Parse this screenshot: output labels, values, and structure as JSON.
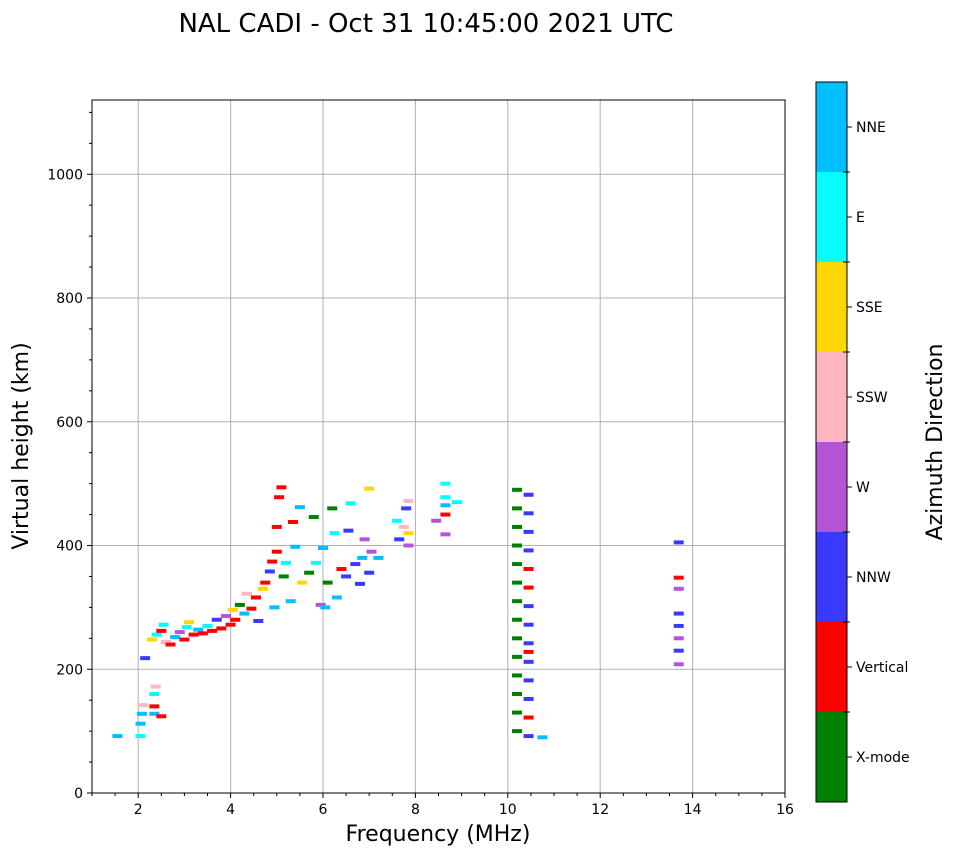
{
  "chart_data": {
    "type": "scatter",
    "title": "NAL CADI - Oct 31 10:45:00 2021 UTC",
    "xlabel": "Frequency (MHz)",
    "ylabel": "Virtual height (km)",
    "xlim": [
      1,
      16
    ],
    "ylim": [
      0,
      1120
    ],
    "xticks": [
      2,
      4,
      6,
      8,
      10,
      12,
      14,
      16
    ],
    "yticks": [
      0,
      200,
      400,
      600,
      800,
      1000
    ],
    "grid": true,
    "colorbar": {
      "label": "Azimuth Direction",
      "categories": [
        {
          "name": "X-mode",
          "color": "#008000"
        },
        {
          "name": "Vertical",
          "color": "#ff0000"
        },
        {
          "name": "NNW",
          "color": "#3a3aff"
        },
        {
          "name": "W",
          "color": "#b554d6"
        },
        {
          "name": "SSW",
          "color": "#ffb6c1"
        },
        {
          "name": "SSE",
          "color": "#ffd700"
        },
        {
          "name": "E",
          "color": "#00ffff"
        },
        {
          "name": "NNE",
          "color": "#00bfff"
        }
      ]
    },
    "points": [
      {
        "f": 1.55,
        "h": 92,
        "dir": "NNE"
      },
      {
        "f": 2.05,
        "h": 92,
        "dir": "E"
      },
      {
        "f": 2.05,
        "h": 112,
        "dir": "NNE"
      },
      {
        "f": 2.08,
        "h": 128,
        "dir": "NNE"
      },
      {
        "f": 2.1,
        "h": 142,
        "dir": "SSW"
      },
      {
        "f": 2.15,
        "h": 218,
        "dir": "NNW"
      },
      {
        "f": 2.35,
        "h": 128,
        "dir": "NNE"
      },
      {
        "f": 2.35,
        "h": 140,
        "dir": "Vertical"
      },
      {
        "f": 2.35,
        "h": 160,
        "dir": "E"
      },
      {
        "f": 2.38,
        "h": 172,
        "dir": "SSW"
      },
      {
        "f": 2.5,
        "h": 124,
        "dir": "Vertical"
      },
      {
        "f": 2.3,
        "h": 248,
        "dir": "SSE"
      },
      {
        "f": 2.4,
        "h": 256,
        "dir": "E"
      },
      {
        "f": 2.5,
        "h": 262,
        "dir": "Vertical"
      },
      {
        "f": 2.55,
        "h": 272,
        "dir": "E"
      },
      {
        "f": 2.6,
        "h": 244,
        "dir": "SSW"
      },
      {
        "f": 2.7,
        "h": 240,
        "dir": "Vertical"
      },
      {
        "f": 2.8,
        "h": 252,
        "dir": "NNE"
      },
      {
        "f": 2.9,
        "h": 260,
        "dir": "W"
      },
      {
        "f": 3.0,
        "h": 248,
        "dir": "Vertical"
      },
      {
        "f": 3.05,
        "h": 268,
        "dir": "E"
      },
      {
        "f": 3.1,
        "h": 276,
        "dir": "SSE"
      },
      {
        "f": 3.2,
        "h": 256,
        "dir": "Vertical"
      },
      {
        "f": 3.3,
        "h": 264,
        "dir": "NNE"
      },
      {
        "f": 3.4,
        "h": 258,
        "dir": "Vertical"
      },
      {
        "f": 3.5,
        "h": 270,
        "dir": "E"
      },
      {
        "f": 3.6,
        "h": 262,
        "dir": "Vertical"
      },
      {
        "f": 3.7,
        "h": 280,
        "dir": "NNW"
      },
      {
        "f": 3.8,
        "h": 266,
        "dir": "Vertical"
      },
      {
        "f": 3.9,
        "h": 286,
        "dir": "W"
      },
      {
        "f": 4.0,
        "h": 272,
        "dir": "Vertical"
      },
      {
        "f": 4.05,
        "h": 296,
        "dir": "SSE"
      },
      {
        "f": 4.1,
        "h": 280,
        "dir": "Vertical"
      },
      {
        "f": 4.2,
        "h": 304,
        "dir": "X-mode"
      },
      {
        "f": 4.3,
        "h": 290,
        "dir": "NNE"
      },
      {
        "f": 4.35,
        "h": 322,
        "dir": "SSW"
      },
      {
        "f": 4.45,
        "h": 298,
        "dir": "Vertical"
      },
      {
        "f": 4.55,
        "h": 316,
        "dir": "Vertical"
      },
      {
        "f": 4.6,
        "h": 278,
        "dir": "NNW"
      },
      {
        "f": 4.7,
        "h": 330,
        "dir": "SSE"
      },
      {
        "f": 4.75,
        "h": 340,
        "dir": "Vertical"
      },
      {
        "f": 4.85,
        "h": 358,
        "dir": "NNW"
      },
      {
        "f": 4.9,
        "h": 374,
        "dir": "Vertical"
      },
      {
        "f": 4.95,
        "h": 300,
        "dir": "NNE"
      },
      {
        "f": 5.0,
        "h": 390,
        "dir": "Vertical"
      },
      {
        "f": 5.0,
        "h": 430,
        "dir": "Vertical"
      },
      {
        "f": 5.05,
        "h": 478,
        "dir": "Vertical"
      },
      {
        "f": 5.1,
        "h": 494,
        "dir": "Vertical"
      },
      {
        "f": 5.15,
        "h": 350,
        "dir": "X-mode"
      },
      {
        "f": 5.2,
        "h": 372,
        "dir": "E"
      },
      {
        "f": 5.3,
        "h": 310,
        "dir": "NNE"
      },
      {
        "f": 5.35,
        "h": 438,
        "dir": "Vertical"
      },
      {
        "f": 5.4,
        "h": 398,
        "dir": "NNE"
      },
      {
        "f": 5.5,
        "h": 462,
        "dir": "NNE"
      },
      {
        "f": 5.55,
        "h": 340,
        "dir": "SSE"
      },
      {
        "f": 5.7,
        "h": 356,
        "dir": "X-mode"
      },
      {
        "f": 5.8,
        "h": 446,
        "dir": "X-mode"
      },
      {
        "f": 5.85,
        "h": 372,
        "dir": "E"
      },
      {
        "f": 5.95,
        "h": 304,
        "dir": "W"
      },
      {
        "f": 6.0,
        "h": 396,
        "dir": "NNE"
      },
      {
        "f": 6.05,
        "h": 300,
        "dir": "NNE"
      },
      {
        "f": 6.1,
        "h": 340,
        "dir": "X-mode"
      },
      {
        "f": 6.2,
        "h": 460,
        "dir": "X-mode"
      },
      {
        "f": 6.25,
        "h": 420,
        "dir": "E"
      },
      {
        "f": 6.3,
        "h": 316,
        "dir": "NNE"
      },
      {
        "f": 6.4,
        "h": 362,
        "dir": "Vertical"
      },
      {
        "f": 6.5,
        "h": 350,
        "dir": "NNW"
      },
      {
        "f": 6.55,
        "h": 424,
        "dir": "NNW"
      },
      {
        "f": 6.6,
        "h": 468,
        "dir": "E"
      },
      {
        "f": 6.7,
        "h": 370,
        "dir": "NNW"
      },
      {
        "f": 6.8,
        "h": 338,
        "dir": "NNW"
      },
      {
        "f": 6.85,
        "h": 380,
        "dir": "NNE"
      },
      {
        "f": 6.9,
        "h": 410,
        "dir": "W"
      },
      {
        "f": 7.0,
        "h": 356,
        "dir": "NNW"
      },
      {
        "f": 7.05,
        "h": 390,
        "dir": "W"
      },
      {
        "f": 7.0,
        "h": 492,
        "dir": "SSE"
      },
      {
        "f": 7.2,
        "h": 380,
        "dir": "NNE"
      },
      {
        "f": 7.6,
        "h": 440,
        "dir": "E"
      },
      {
        "f": 7.65,
        "h": 410,
        "dir": "NNW"
      },
      {
        "f": 7.75,
        "h": 430,
        "dir": "SSW"
      },
      {
        "f": 7.8,
        "h": 460,
        "dir": "NNW"
      },
      {
        "f": 7.85,
        "h": 400,
        "dir": "W"
      },
      {
        "f": 7.85,
        "h": 420,
        "dir": "SSE"
      },
      {
        "f": 7.85,
        "h": 472,
        "dir": "SSW"
      },
      {
        "f": 8.45,
        "h": 440,
        "dir": "W"
      },
      {
        "f": 8.65,
        "h": 418,
        "dir": "W"
      },
      {
        "f": 8.65,
        "h": 450,
        "dir": "Vertical"
      },
      {
        "f": 8.65,
        "h": 478,
        "dir": "E"
      },
      {
        "f": 8.65,
        "h": 500,
        "dir": "E"
      },
      {
        "f": 8.65,
        "h": 465,
        "dir": "NNE"
      },
      {
        "f": 8.9,
        "h": 470,
        "dir": "E"
      },
      {
        "f": 10.2,
        "h": 100,
        "dir": "X-mode"
      },
      {
        "f": 10.2,
        "h": 130,
        "dir": "X-mode"
      },
      {
        "f": 10.2,
        "h": 160,
        "dir": "X-mode"
      },
      {
        "f": 10.2,
        "h": 190,
        "dir": "X-mode"
      },
      {
        "f": 10.2,
        "h": 220,
        "dir": "X-mode"
      },
      {
        "f": 10.2,
        "h": 250,
        "dir": "X-mode"
      },
      {
        "f": 10.2,
        "h": 280,
        "dir": "X-mode"
      },
      {
        "f": 10.2,
        "h": 310,
        "dir": "X-mode"
      },
      {
        "f": 10.2,
        "h": 340,
        "dir": "X-mode"
      },
      {
        "f": 10.2,
        "h": 370,
        "dir": "X-mode"
      },
      {
        "f": 10.2,
        "h": 400,
        "dir": "X-mode"
      },
      {
        "f": 10.2,
        "h": 430,
        "dir": "X-mode"
      },
      {
        "f": 10.2,
        "h": 460,
        "dir": "X-mode"
      },
      {
        "f": 10.2,
        "h": 490,
        "dir": "X-mode"
      },
      {
        "f": 10.45,
        "h": 92,
        "dir": "NNW"
      },
      {
        "f": 10.45,
        "h": 122,
        "dir": "Vertical"
      },
      {
        "f": 10.45,
        "h": 152,
        "dir": "NNW"
      },
      {
        "f": 10.45,
        "h": 182,
        "dir": "NNW"
      },
      {
        "f": 10.45,
        "h": 212,
        "dir": "NNW"
      },
      {
        "f": 10.45,
        "h": 228,
        "dir": "Vertical"
      },
      {
        "f": 10.45,
        "h": 242,
        "dir": "NNW"
      },
      {
        "f": 10.45,
        "h": 272,
        "dir": "NNW"
      },
      {
        "f": 10.45,
        "h": 302,
        "dir": "NNW"
      },
      {
        "f": 10.45,
        "h": 332,
        "dir": "Vertical"
      },
      {
        "f": 10.45,
        "h": 362,
        "dir": "Vertical"
      },
      {
        "f": 10.45,
        "h": 392,
        "dir": "NNW"
      },
      {
        "f": 10.45,
        "h": 422,
        "dir": "NNW"
      },
      {
        "f": 10.45,
        "h": 452,
        "dir": "NNW"
      },
      {
        "f": 10.45,
        "h": 482,
        "dir": "NNW"
      },
      {
        "f": 10.75,
        "h": 90,
        "dir": "NNE"
      },
      {
        "f": 13.7,
        "h": 208,
        "dir": "W"
      },
      {
        "f": 13.7,
        "h": 230,
        "dir": "NNW"
      },
      {
        "f": 13.7,
        "h": 250,
        "dir": "W"
      },
      {
        "f": 13.7,
        "h": 270,
        "dir": "NNW"
      },
      {
        "f": 13.7,
        "h": 290,
        "dir": "NNW"
      },
      {
        "f": 13.7,
        "h": 330,
        "dir": "W"
      },
      {
        "f": 13.7,
        "h": 348,
        "dir": "Vertical"
      },
      {
        "f": 13.7,
        "h": 405,
        "dir": "NNW"
      }
    ]
  }
}
